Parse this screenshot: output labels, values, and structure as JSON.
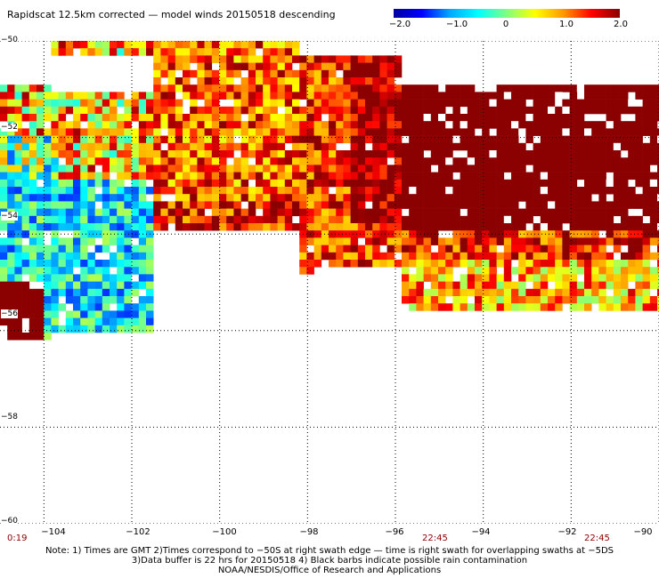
{
  "title": "Rapidscat 12.5km corrected — model winds 20150518 descending",
  "colorbar": {
    "labels": [
      "−2.0",
      "−1.0",
      "0",
      "1.0",
      "2.0"
    ],
    "values": [
      -2.0,
      -1.0,
      0,
      1.0,
      2.0
    ]
  },
  "map": {
    "lon_range": [
      -105,
      -90
    ],
    "lat_range": [
      -60,
      -50
    ],
    "lon_ticks": [
      "−104",
      "−102",
      "−100",
      "−98",
      "−96",
      "−94",
      "−92",
      "−90"
    ],
    "lon_values": [
      -104,
      -102,
      -100,
      -98,
      -96,
      -94,
      -92,
      -90
    ],
    "lat_ticks": [
      "−50",
      "−52",
      "−54",
      "−56",
      "−58",
      "−60"
    ],
    "lat_values": [
      -50,
      -52,
      -54,
      -56,
      -58,
      -60
    ],
    "gridlines": true
  },
  "times": [
    {
      "label": "0:19",
      "lon": -105
    },
    {
      "label": "22:45",
      "lon": -95.2
    },
    {
      "label": "22:45",
      "lon": -91.3
    }
  ],
  "notes": [
    "Note: 1) Times are GMT 2)Times correspond to −50S at right swath edge — time is right swath for overlapping swaths at −5DS",
    "3)Data buffer is 22 hrs for 20150518 4) Black barbs indicate possible rain contamination",
    "NOAA/NESDIS/Office of Research and Applications"
  ],
  "colors": {
    "low": "#0000c0",
    "mid": "#ffff00",
    "high": "#8b0000"
  }
}
